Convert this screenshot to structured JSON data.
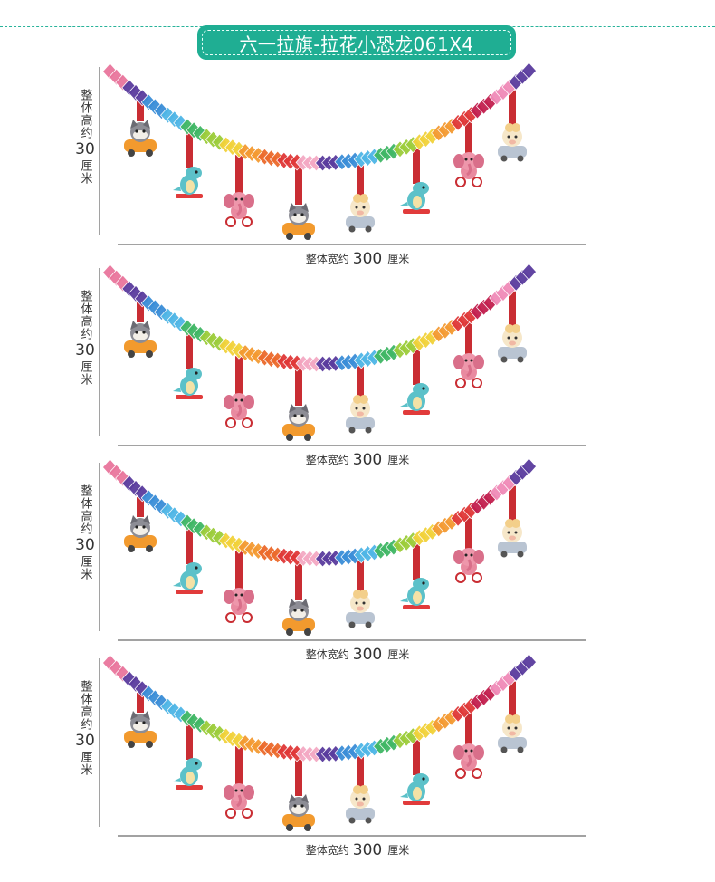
{
  "title": "六一拉旗-拉花小恐龙061X4",
  "dimension": {
    "height_label_top": "整体高约",
    "height_value": "30",
    "height_unit": "厘米",
    "width_label": "整体宽约",
    "width_value": "300",
    "width_unit": "厘米"
  },
  "colors": {
    "accent": "#1fae93",
    "rope": "#c92d33",
    "garland": [
      "#e9759c",
      "#5a3c9e",
      "#3b8ed8",
      "#4fb6e6",
      "#40b765",
      "#9ccd3b",
      "#f2d23a",
      "#f49a32",
      "#ec6a2c",
      "#e03838",
      "#f4a9c4",
      "#5a3c9e",
      "#3b8ed8",
      "#4fb6e6",
      "#40b765",
      "#9ccd3b",
      "#f2d23a",
      "#f49a32",
      "#e03838",
      "#c21f4f",
      "#f08bb8",
      "#5a3c9e"
    ]
  },
  "characters": [
    "raccoon-car",
    "dino-skateboard",
    "elephant-bike",
    "raccoon-car",
    "sheep-car",
    "dino-skateboard",
    "elephant-bike",
    "sheep-car"
  ],
  "panels": [
    {
      "id": "panel-1"
    },
    {
      "id": "panel-2"
    },
    {
      "id": "panel-3"
    },
    {
      "id": "panel-4"
    }
  ]
}
